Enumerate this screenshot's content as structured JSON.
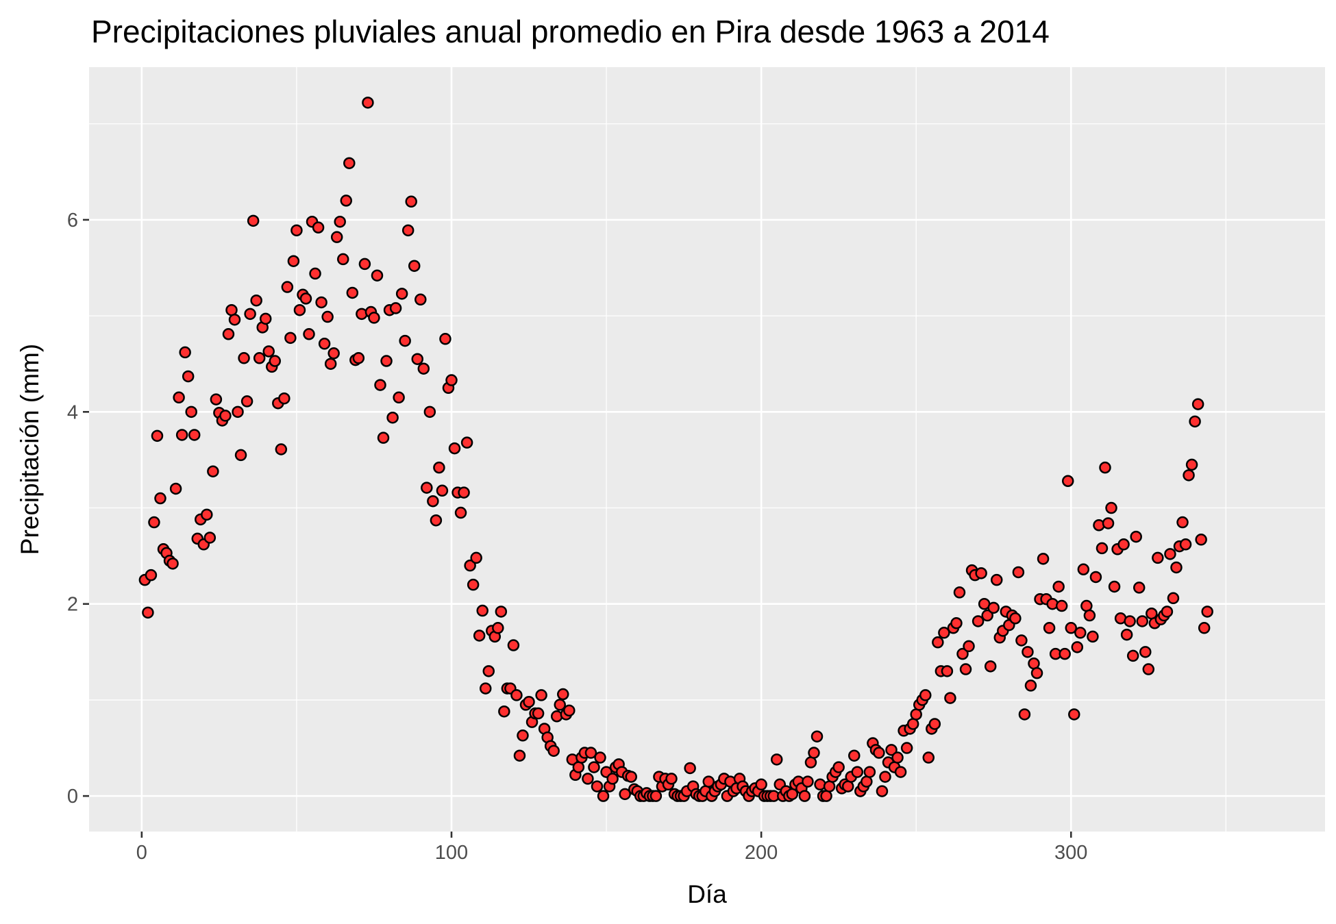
{
  "chart_data": {
    "type": "scatter",
    "title": "Precipitaciones pluviales anual promedio en Pira desde 1963 a 2014",
    "xlabel": "Día",
    "ylabel": "Precipitación (mm)",
    "xlim": [
      -17,
      382
    ],
    "ylim": [
      -0.37,
      7.59
    ],
    "x_ticks": [
      0,
      100,
      200,
      300
    ],
    "x_tick_labels": [
      "0",
      "100",
      "200",
      "300"
    ],
    "y_ticks": [
      0,
      2,
      4,
      6
    ],
    "y_tick_labels": [
      "0",
      "2",
      "4",
      "6"
    ],
    "grid": true,
    "panel_color": "#ebebeb",
    "point_fill": "#ff3030",
    "point_stroke": "#000000",
    "y": [
      2.25,
      1.91,
      2.3,
      2.85,
      3.75,
      3.1,
      2.57,
      2.53,
      2.45,
      2.42,
      3.2,
      4.15,
      3.76,
      4.62,
      4.37,
      4.0,
      3.76,
      2.68,
      2.88,
      2.62,
      2.93,
      2.69,
      3.38,
      4.13,
      3.99,
      3.91,
      3.96,
      4.81,
      5.06,
      4.96,
      4.0,
      3.55,
      4.56,
      4.11,
      5.02,
      5.99,
      5.16,
      4.56,
      4.88,
      4.97,
      4.63,
      4.47,
      4.53,
      4.09,
      3.61,
      4.14,
      5.3,
      4.77,
      5.57,
      5.89,
      5.06,
      5.22,
      5.18,
      4.81,
      5.98,
      5.44,
      5.92,
      5.14,
      4.71,
      4.99,
      4.5,
      4.61,
      5.82,
      5.98,
      5.59,
      6.2,
      6.59,
      5.24,
      4.54,
      4.56,
      5.02,
      5.54,
      7.22,
      5.04,
      4.98,
      5.42,
      4.28,
      3.73,
      4.53,
      5.06,
      3.94,
      5.08,
      4.15,
      5.23,
      4.74,
      5.89,
      6.19,
      5.52,
      4.55,
      5.17,
      4.45,
      3.21,
      4.0,
      3.07,
      2.87,
      3.42,
      3.18,
      4.76,
      4.25,
      4.33,
      3.62,
      3.16,
      2.95,
      3.16,
      3.68,
      2.4,
      2.2,
      2.48,
      1.67,
      1.93,
      1.12,
      1.3,
      1.72,
      1.66,
      1.75,
      1.92,
      0.88,
      1.12,
      1.12,
      1.57,
      1.05,
      0.42,
      0.63,
      0.95,
      0.98,
      0.77,
      0.86,
      0.86,
      1.05,
      0.7,
      0.61,
      0.52,
      0.47,
      0.83,
      0.95,
      1.06,
      0.85,
      0.89,
      0.38,
      0.22,
      0.3,
      0.4,
      0.45,
      0.18,
      0.45,
      0.3,
      0.1,
      0.4,
      0.0,
      0.25,
      0.1,
      0.18,
      0.3,
      0.33,
      0.25,
      0.02,
      0.21,
      0.2,
      0.07,
      0.05,
      0.0,
      0.0,
      0.03,
      0.0,
      0.0,
      0.0,
      0.2,
      0.1,
      0.18,
      0.12,
      0.18,
      0.02,
      0.0,
      0.0,
      0.0,
      0.05,
      0.29,
      0.1,
      0.02,
      0.0,
      0.0,
      0.05,
      0.15,
      0.0,
      0.05,
      0.1,
      0.12,
      0.18,
      0.0,
      0.15,
      0.05,
      0.08,
      0.18,
      0.1,
      0.05,
      0.0,
      0.05,
      0.08,
      0.05,
      0.12,
      0.0,
      0.0,
      0.0,
      0.0,
      0.38,
      0.12,
      0.0,
      0.05,
      0.0,
      0.02,
      0.12,
      0.15,
      0.08,
      0.0,
      0.15,
      0.35,
      0.45,
      0.62,
      0.12,
      0.0,
      0.0,
      0.1,
      0.2,
      0.25,
      0.3,
      0.08,
      0.12,
      0.1,
      0.2,
      0.42,
      0.25,
      0.05,
      0.1,
      0.15,
      0.25,
      0.55,
      0.48,
      0.45,
      0.05,
      0.2,
      0.35,
      0.48,
      0.3,
      0.4,
      0.25,
      0.68,
      0.5,
      0.7,
      0.75,
      0.85,
      0.95,
      1.0,
      1.05,
      0.4,
      0.7,
      0.75,
      1.6,
      1.3,
      1.7,
      1.3,
      1.02,
      1.75,
      1.8,
      2.12,
      1.48,
      1.32,
      1.56,
      2.35,
      2.3,
      1.82,
      2.32,
      2.0,
      1.88,
      1.35,
      1.96,
      2.25,
      1.65,
      1.72,
      1.92,
      1.78,
      1.88,
      1.85,
      2.33,
      1.62,
      0.85,
      1.5,
      1.15,
      1.38,
      1.28,
      2.05,
      2.47,
      2.05,
      1.75,
      2.0,
      1.48,
      2.18,
      1.98,
      1.48,
      3.28,
      1.75,
      0.85,
      1.55,
      1.7,
      2.36,
      1.98,
      1.88,
      1.66,
      2.28,
      2.82,
      2.58,
      3.42,
      2.84,
      3.0,
      2.18,
      2.57,
      1.85,
      2.62,
      1.68,
      1.82,
      1.46,
      2.7,
      2.17,
      1.82,
      1.5,
      1.32,
      1.9,
      1.8,
      2.48,
      1.84,
      1.88,
      1.92,
      2.52,
      2.06,
      2.38,
      2.6,
      2.85,
      2.62,
      3.34,
      3.45,
      3.9,
      4.08,
      2.67,
      1.75,
      1.92
    ]
  }
}
